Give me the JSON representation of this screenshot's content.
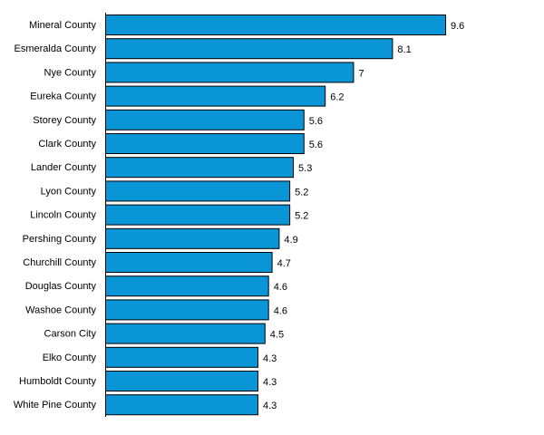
{
  "chart_data": {
    "type": "bar",
    "orientation": "horizontal",
    "title": "",
    "xlabel": "",
    "ylabel": "",
    "categories": [
      "Mineral County",
      "Esmeralda County",
      "Nye County",
      "Eureka County",
      "Storey County",
      "Clark County",
      "Lander County",
      "Lyon County",
      "Lincoln County",
      "Pershing County",
      "Churchill County",
      "Douglas County",
      "Washoe County",
      "Carson City",
      "Elko County",
      "Humboldt County",
      "White Pine County"
    ],
    "values": [
      9.6,
      8.1,
      7,
      6.2,
      5.6,
      5.6,
      5.3,
      5.2,
      5.2,
      4.9,
      4.7,
      4.6,
      4.6,
      4.5,
      4.3,
      4.3,
      4.3
    ],
    "value_labels": [
      "9.6",
      "8.1",
      "7",
      "6.2",
      "5.6",
      "5.6",
      "5.3",
      "5.2",
      "5.2",
      "4.9",
      "4.7",
      "4.6",
      "4.6",
      "4.5",
      "4.3",
      "4.3",
      "4.3"
    ],
    "xlim": [
      0,
      9.6
    ],
    "grid": false,
    "legend": "none",
    "bar_color": "#0a96d6",
    "border_color": "#000000"
  }
}
